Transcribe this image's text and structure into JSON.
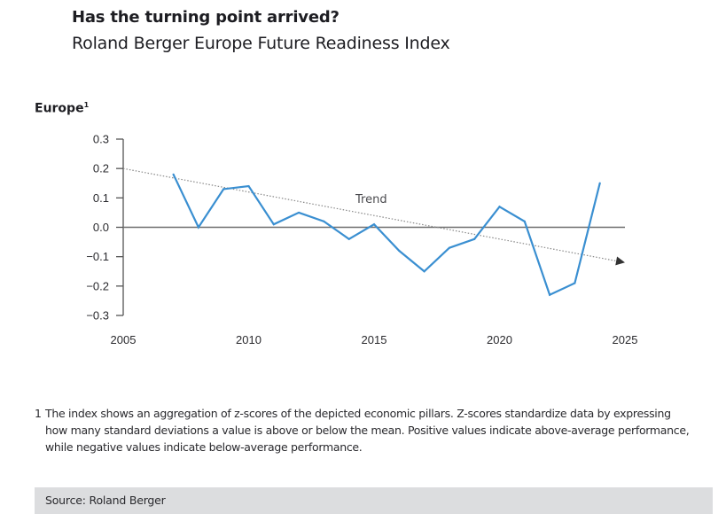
{
  "header": {
    "title": "Has the turning point arrived?",
    "subtitle": "Roland Berger Europe Future Readiness Index"
  },
  "chart_data": {
    "type": "line",
    "title": "Europe",
    "title_footnote_marker": "1",
    "xlabel": "",
    "ylabel": "",
    "xlim": [
      2005,
      2025
    ],
    "ylim": [
      -0.3,
      0.3
    ],
    "x_ticks": [
      "2005",
      "2010",
      "2015",
      "2020",
      "2025"
    ],
    "y_ticks": [
      "0.3",
      "0.2",
      "0.1",
      "0.0",
      "-0.1",
      "-0.2",
      "-0.3"
    ],
    "y_tick_values": [
      0.3,
      0.2,
      0.1,
      0.0,
      -0.1,
      -0.2,
      -0.3
    ],
    "x_tick_values": [
      2005,
      2010,
      2015,
      2020,
      2025
    ],
    "grid": false,
    "series": [
      {
        "name": "Europe",
        "color": "#3a8fd1",
        "x": [
          2007,
          2008,
          2009,
          2010,
          2011,
          2012,
          2013,
          2014,
          2015,
          2016,
          2017,
          2018,
          2019,
          2020,
          2021,
          2022,
          2023,
          2024
        ],
        "values": [
          0.18,
          0.0,
          0.13,
          0.14,
          0.01,
          0.05,
          0.02,
          -0.04,
          0.01,
          -0.08,
          -0.15,
          -0.07,
          -0.04,
          0.07,
          0.02,
          -0.23,
          -0.19,
          0.15
        ]
      }
    ],
    "trend": {
      "label": "Trend",
      "color": "#888888",
      "start": {
        "x": 2005,
        "y": 0.2
      },
      "end": {
        "x": 2025,
        "y": -0.12
      }
    },
    "zero_line": 0.0
  },
  "footnote": {
    "number": "1",
    "text": "The index shows an aggregation of z-scores of the depicted economic pillars. Z-scores standardize data by expressing how many standard deviations a value is above or below the mean. Positive values indicate above-average performance, while negative values indicate below-average performance."
  },
  "source": {
    "text": "Source: Roland Berger"
  }
}
